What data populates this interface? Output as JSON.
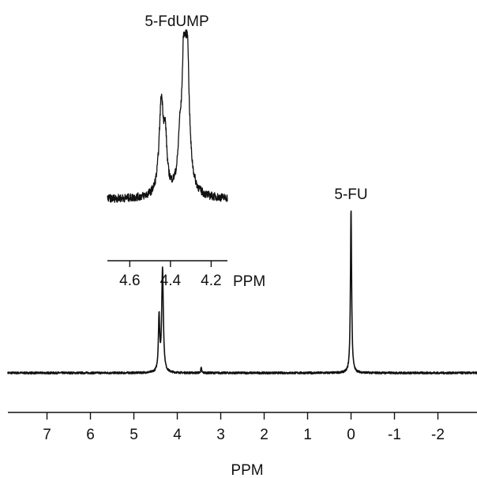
{
  "chart_data": [
    {
      "type": "line",
      "title": "",
      "xlabel": "PPM",
      "ylabel": "",
      "x_reversed": true,
      "xlim": [
        7.9,
        -2.9
      ],
      "xticks": [
        7,
        6,
        5,
        4,
        3,
        2,
        1,
        0,
        -1,
        -2
      ],
      "xtick_labels": [
        "7",
        "6",
        "5",
        "4",
        "3",
        "2",
        "1",
        "0",
        "-1",
        "-2"
      ],
      "peaks": [
        {
          "name": "5-FdUMP",
          "x": [
            4.42,
            4.34
          ],
          "y": [
            0.33,
            0.63
          ]
        },
        {
          "name": "5-FU",
          "x": [
            0.0
          ],
          "y": [
            1.0
          ]
        }
      ],
      "annotations": [
        {
          "text": "5-FU",
          "x": 0.0
        }
      ]
    },
    {
      "type": "line",
      "title": "5-FdUMP",
      "xlabel": "PPM",
      "ylabel": "",
      "x_reversed": true,
      "xlim": [
        4.71,
        4.12
      ],
      "xticks": [
        4.6,
        4.4,
        4.2
      ],
      "xtick_labels": [
        "4.6",
        "4.4",
        "4.2"
      ],
      "peaks": [
        {
          "x": 4.445,
          "y": 0.57
        },
        {
          "x": 4.33,
          "y": 1.0
        }
      ]
    }
  ],
  "colors": {
    "ink": "#111111",
    "background": "#ffffff"
  }
}
